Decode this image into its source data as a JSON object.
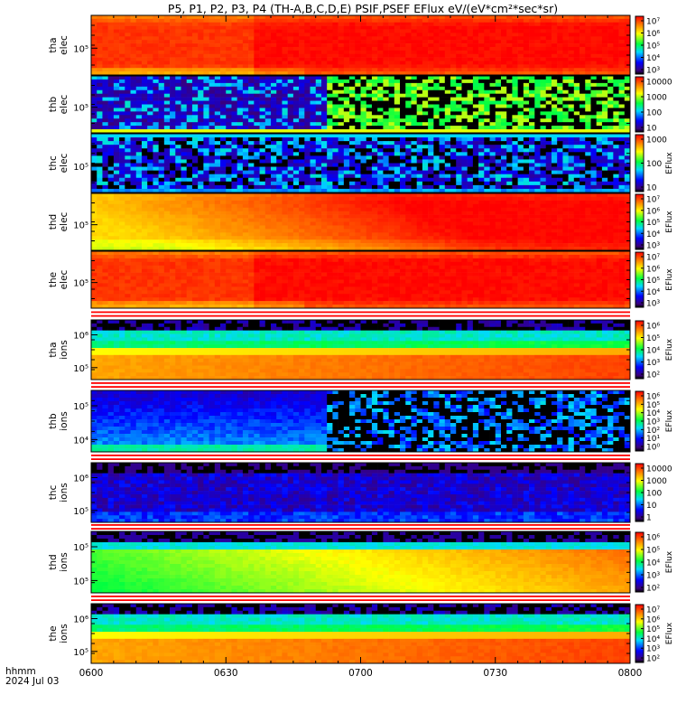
{
  "chart_data": {
    "type": "heatmap",
    "title": "P5, P1, P2, P3, P4 (TH-A,B,C,D,E) PSIF,PSEF EFlux eV/(eV*cm²*sec*sr)",
    "x": {
      "label_line1": "hhmm",
      "label_line2": "2024 Jul 03",
      "ticks": [
        "0600",
        "0630",
        "0700",
        "0730",
        "0800"
      ],
      "range": [
        "06:00",
        "08:00"
      ]
    },
    "panels": [
      {
        "id": "tha-elec",
        "label_top": "tha",
        "label_bottom": "elec",
        "yticks": [
          "10⁵"
        ],
        "colorbar_ticks": [
          "10⁷",
          "10⁶",
          "10⁵",
          "10⁴",
          "10³"
        ],
        "colorbar_label": "EFlux",
        "colorbar_label_shown": false,
        "pattern": "electron-hot"
      },
      {
        "id": "thb-elec",
        "label_top": "thb",
        "label_bottom": "elec",
        "yticks": [
          "10⁵"
        ],
        "colorbar_ticks": [
          "10000",
          "1000",
          "100",
          "10"
        ],
        "colorbar_label": "EFlux",
        "colorbar_label_shown": false,
        "pattern": "sparse-switch",
        "switch_time": "06:52"
      },
      {
        "id": "thc-elec",
        "label_top": "thc",
        "label_bottom": "elec",
        "yticks": [
          "10⁵"
        ],
        "colorbar_ticks": [
          "1000",
          "100",
          "10"
        ],
        "colorbar_label": "EFlux",
        "colorbar_label_shown": true,
        "pattern": "sparse-low"
      },
      {
        "id": "thd-elec",
        "label_top": "thd",
        "label_bottom": "elec",
        "yticks": [
          "10⁵"
        ],
        "colorbar_ticks": [
          "10⁷",
          "10⁶",
          "10⁵",
          "10⁴",
          "10³"
        ],
        "colorbar_label": "EFlux",
        "colorbar_label_shown": true,
        "pattern": "electron-yellow"
      },
      {
        "id": "the-elec",
        "label_top": "the",
        "label_bottom": "elec",
        "yticks": [
          "10⁵"
        ],
        "colorbar_ticks": [
          "10⁷",
          "10⁶",
          "10⁵",
          "10⁴",
          "10³"
        ],
        "colorbar_label": "EFlux",
        "colorbar_label_shown": true,
        "pattern": "electron-hot"
      },
      {
        "id": "tha-ions",
        "label_top": "tha",
        "label_bottom": "ions",
        "yticks": [
          "10⁶",
          "10⁵"
        ],
        "colorbar_ticks": [
          "10⁶",
          "10⁵",
          "10⁴",
          "10³",
          "10²"
        ],
        "colorbar_label": "EFlux",
        "colorbar_label_shown": true,
        "pattern": "ion-band"
      },
      {
        "id": "thb-ions",
        "label_top": "thb",
        "label_bottom": "ions",
        "yticks": [
          "10⁵",
          "10⁴"
        ],
        "colorbar_ticks": [
          "10⁶",
          "10⁵",
          "10⁴",
          "10³",
          "10²",
          "10¹",
          "10⁰"
        ],
        "colorbar_label": "EFlux",
        "colorbar_label_shown": true,
        "pattern": "ion-sparse",
        "switch_time": "06:53"
      },
      {
        "id": "thc-ions",
        "label_top": "thc",
        "label_bottom": "ions",
        "yticks": [
          "10⁶",
          "10⁵"
        ],
        "colorbar_ticks": [
          "10000",
          "1000",
          "100",
          "10",
          "1"
        ],
        "colorbar_label": "EFlux",
        "colorbar_label_shown": false,
        "pattern": "ion-low"
      },
      {
        "id": "thd-ions",
        "label_top": "thd",
        "label_bottom": "ions",
        "yticks": [
          "10⁵",
          "10⁵"
        ],
        "colorbar_ticks": [
          "10⁶",
          "10⁵",
          "10⁴",
          "10³",
          "10²"
        ],
        "colorbar_label": "EFlux",
        "colorbar_label_shown": true,
        "pattern": "ion-green"
      },
      {
        "id": "the-ions",
        "label_top": "the",
        "label_bottom": "ions",
        "yticks": [
          "10⁶",
          "10⁵"
        ],
        "colorbar_ticks": [
          "10⁷",
          "10⁶",
          "10⁵",
          "10⁴",
          "10³",
          "10²"
        ],
        "colorbar_label": "EFlux",
        "colorbar_label_shown": true,
        "pattern": "ion-band"
      }
    ]
  }
}
